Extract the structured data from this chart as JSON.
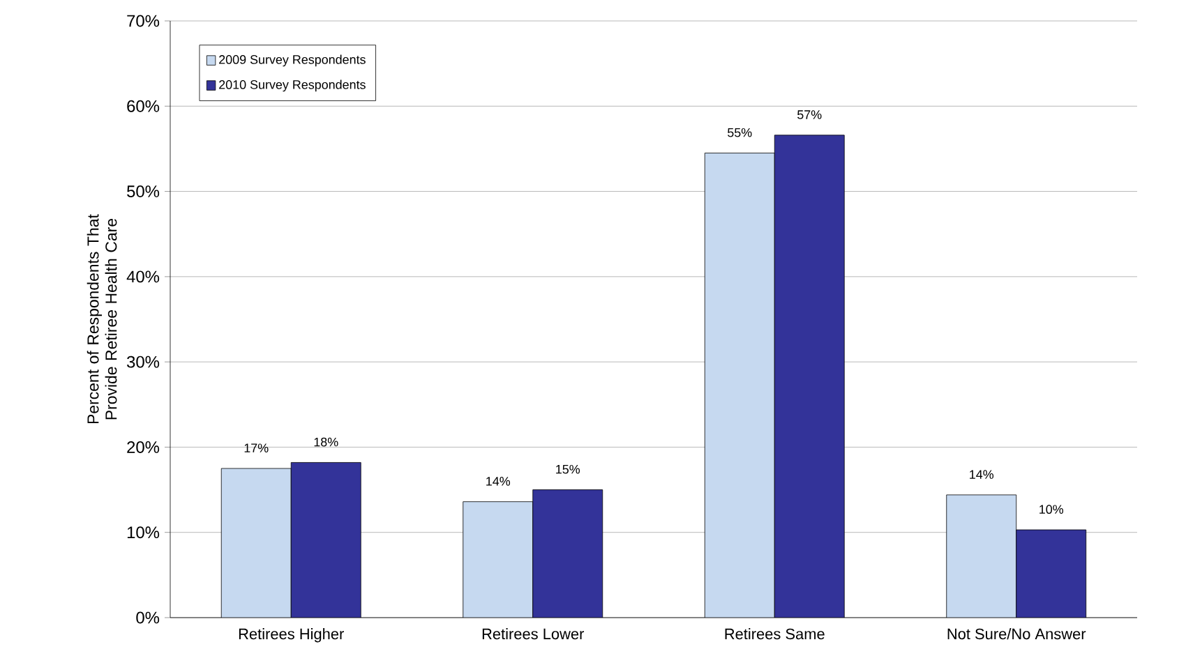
{
  "chart_data": {
    "type": "bar",
    "ylabel": "Percent of Respondents That Provide Retiree Health Care",
    "categories": [
      "Retirees Higher",
      "Retirees Lower",
      "Retirees Same",
      "Not Sure/No Answer"
    ],
    "series": [
      {
        "name": "2009 Survey Respondents",
        "color": "#c6d9f0",
        "values": [
          17.5,
          13.6,
          54.5,
          14.4
        ],
        "value_labels": [
          "17%",
          "14%",
          "55%",
          "14%"
        ]
      },
      {
        "name": "2010 Survey Respondents",
        "color": "#333399",
        "values": [
          18.2,
          15.0,
          56.6,
          10.3
        ],
        "value_labels": [
          "18%",
          "15%",
          "57%",
          "10%"
        ]
      }
    ],
    "ylim": [
      0,
      70
    ],
    "yticks": [
      {
        "value": 0,
        "label": "0%"
      },
      {
        "value": 10,
        "label": "10%"
      },
      {
        "value": 20,
        "label": "20%"
      },
      {
        "value": 30,
        "label": "30%"
      },
      {
        "value": 40,
        "label": "40%"
      },
      {
        "value": 50,
        "label": "50%"
      },
      {
        "value": 60,
        "label": "60%"
      },
      {
        "value": 70,
        "label": "70%"
      }
    ],
    "grid": "y",
    "legend": "top left"
  }
}
